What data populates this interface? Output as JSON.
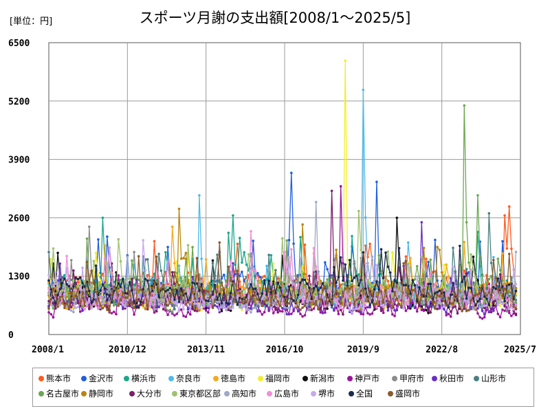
{
  "unit_label": "[単位：円]",
  "title": "スポーツ月謝の支出額[2008/1～2025/5]",
  "chart_data": {
    "type": "line",
    "title": "スポーツ月謝の支出額[2008/1～2025/5]",
    "unit": "[単位：円]",
    "xlabel": "",
    "ylabel": "",
    "ylim": [
      0,
      6500
    ],
    "y_ticks": [
      "0",
      "1300",
      "2600",
      "3900",
      "5200",
      "6500"
    ],
    "x_ticks": [
      "2008/1",
      "2010/12",
      "2013/11",
      "2016/10",
      "2019/9",
      "2022/8",
      "2025/7"
    ],
    "grid": true,
    "legend_position": "bottom",
    "series": [
      {
        "name": "熊本市",
        "color": "#ff5a1f",
        "baseline": 1050,
        "peaks": [
          [
            2025.1,
            2850
          ],
          [
            2024.9,
            2650
          ]
        ]
      },
      {
        "name": "金沢市",
        "color": "#1f5fe0",
        "baseline": 1000,
        "peaks": [
          [
            2017.0,
            3600
          ],
          [
            2020.2,
            3400
          ]
        ]
      },
      {
        "name": "横浜市",
        "color": "#1aa88a",
        "baseline": 1000,
        "peaks": [
          [
            2014.8,
            2650
          ],
          [
            2010.0,
            2600
          ]
        ]
      },
      {
        "name": "奈良市",
        "color": "#4fb9ea",
        "baseline": 900,
        "peaks": [
          [
            2019.7,
            5450
          ],
          [
            2013.6,
            3100
          ]
        ]
      },
      {
        "name": "徳島市",
        "color": "#f5a91f",
        "baseline": 900,
        "peaks": [
          [
            2012.6,
            2400
          ]
        ]
      },
      {
        "name": "福岡市",
        "color": "#f2ee2a",
        "baseline": 850,
        "peaks": [
          [
            2019.0,
            6100
          ]
        ]
      },
      {
        "name": "新潟市",
        "color": "#111111",
        "baseline": 800,
        "peaks": [
          [
            2020.9,
            2600
          ]
        ]
      },
      {
        "name": "神戸市",
        "color": "#9b159b",
        "baseline": 600,
        "peaks": [
          [
            2018.8,
            3300
          ]
        ]
      },
      {
        "name": "甲府市",
        "color": "#8c8c8c",
        "baseline": 800,
        "peaks": [
          [
            2009.5,
            2400
          ]
        ]
      },
      {
        "name": "秋田市",
        "color": "#6a2ec4",
        "baseline": 700,
        "peaks": [
          [
            2021.8,
            2500
          ]
        ]
      },
      {
        "name": "山形市",
        "color": "#4a7f80",
        "baseline": 850,
        "peaks": [
          [
            2024.3,
            2700
          ]
        ]
      },
      {
        "name": "名古屋市",
        "color": "#6aa84f",
        "baseline": 950,
        "peaks": [
          [
            2023.4,
            5100
          ],
          [
            2023.9,
            3100
          ]
        ]
      },
      {
        "name": "静岡市",
        "color": "#b8860b",
        "baseline": 850,
        "peaks": [
          [
            2012.8,
            2800
          ],
          [
            2017.4,
            2450
          ]
        ]
      },
      {
        "name": "大分市",
        "color": "#7a1f6b",
        "baseline": 700,
        "peaks": [
          [
            2018.5,
            3200
          ]
        ]
      },
      {
        "name": "東京都区部",
        "color": "#9fc26d",
        "baseline": 950,
        "peaks": [
          [
            2019.5,
            2750
          ]
        ]
      },
      {
        "name": "高知市",
        "color": "#a0a8c8",
        "baseline": 800,
        "peaks": [
          [
            2017.9,
            2950
          ]
        ]
      },
      {
        "name": "広島市",
        "color": "#f08fd8",
        "baseline": 850,
        "peaks": [
          [
            2015.5,
            2300
          ]
        ]
      },
      {
        "name": "堺市",
        "color": "#c8a8f0",
        "baseline": 750,
        "peaks": [
          [
            2011.5,
            2100
          ]
        ]
      },
      {
        "name": "全国",
        "color": "#1a2a4a",
        "baseline": 950,
        "peaks": [
          [
            2018.6,
            1500
          ]
        ]
      },
      {
        "name": "盛岡市",
        "color": "#8b5a2b",
        "baseline": 800,
        "peaks": [
          [
            2014.3,
            2050
          ]
        ]
      }
    ]
  }
}
